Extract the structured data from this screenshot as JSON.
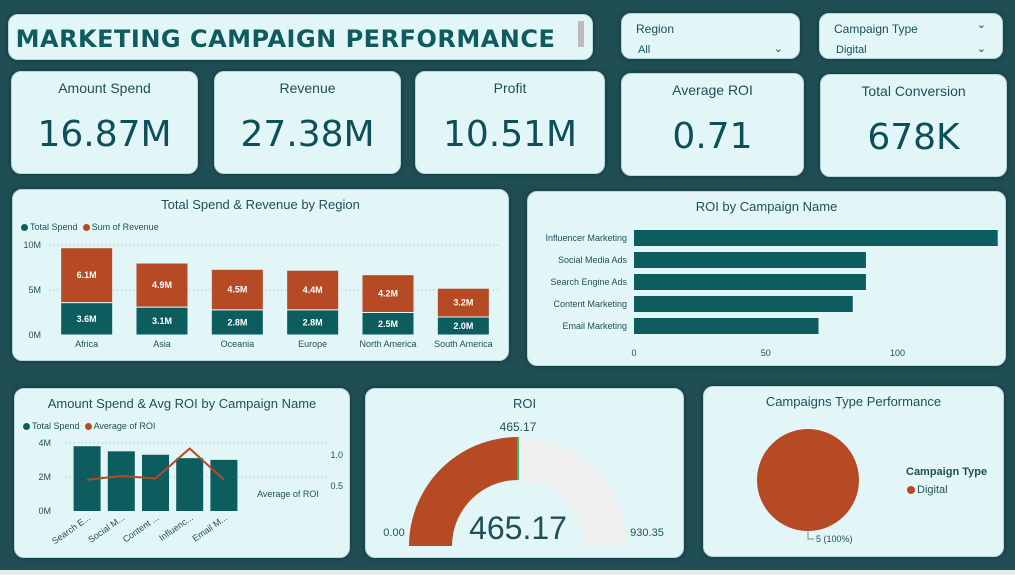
{
  "title": "MARKETING CAMPAIGN PERFORMANCE",
  "slicers": [
    {
      "label": "Region",
      "value": "All"
    },
    {
      "label": "Campaign Type",
      "value": "Digital"
    }
  ],
  "kpis": [
    {
      "label": "Amount Spend",
      "value": "16.87M"
    },
    {
      "label": "Revenue",
      "value": "27.38M"
    },
    {
      "label": "Profit",
      "value": "10.51M"
    },
    {
      "label": "Average ROI",
      "value": "0.71"
    },
    {
      "label": "Total Conversion",
      "value": "678K"
    }
  ],
  "colors": {
    "teal": "#0d5c5e",
    "orange": "#b54a25",
    "card": "#e3f6f7",
    "background": "#1f4f55"
  },
  "chart_data": [
    {
      "type": "bar",
      "stacked": true,
      "title": "Total Spend & Revenue by Region",
      "categories": [
        "Africa",
        "Asia",
        "Oceania",
        "Europe",
        "North America",
        "South America"
      ],
      "series": [
        {
          "name": "Total Spend",
          "values": [
            3.6,
            3.1,
            2.8,
            2.8,
            2.5,
            2.0
          ],
          "labels": [
            "3.6M",
            "3.1M",
            "2.8M",
            "2.8M",
            "2.5M",
            "2.0M"
          ]
        },
        {
          "name": "Sum of Revenue",
          "values": [
            6.1,
            4.9,
            4.5,
            4.4,
            4.2,
            3.2
          ],
          "labels": [
            "6.1M",
            "4.9M",
            "4.5M",
            "4.4M",
            "4.2M",
            "3.2M"
          ]
        }
      ],
      "yticks": [
        "0M",
        "5M",
        "10M"
      ],
      "ylim": [
        0,
        10
      ],
      "legend": "top-left",
      "grid": true
    },
    {
      "type": "bar",
      "orientation": "horizontal",
      "title": "ROI by Campaign Name",
      "categories": [
        "Influencer Marketing",
        "Social Media Ads",
        "Search Engine Ads",
        "Content Marketing",
        "Email Marketing"
      ],
      "values": [
        138,
        88,
        88,
        83,
        70
      ],
      "xticks": [
        "0",
        "50",
        "100"
      ],
      "xlim": [
        0,
        140
      ]
    },
    {
      "type": "bar",
      "combo": "bar+line",
      "title": "Amount Spend & Avg ROI by Campaign Name",
      "categories": [
        "Search E...",
        "Social M...",
        "Content ...",
        "Influenc...",
        "Email M..."
      ],
      "series": [
        {
          "name": "Total Spend",
          "values": [
            3.8,
            3.5,
            3.3,
            3.1,
            3.0
          ]
        },
        {
          "name": "Average of ROI",
          "values": [
            0.6,
            0.66,
            0.62,
            1.1,
            0.6
          ]
        }
      ],
      "yticks": [
        "0M",
        "2M",
        "4M"
      ],
      "ylim": [
        0,
        4.4
      ],
      "y2ticks": [
        "0.5",
        "1.0"
      ],
      "y2lim": [
        0.1,
        1.3
      ],
      "y2label": "Average of ROI",
      "legend": "top-left",
      "grid": true
    },
    {
      "type": "gauge",
      "title": "ROI",
      "value": 465.17,
      "value_label": "465.17",
      "min_label": "0.00",
      "max_label": "930.35",
      "target_label": "465.17",
      "min": 0,
      "max": 930.35
    },
    {
      "type": "pie",
      "title": "Campaigns Type Performance",
      "slices": [
        {
          "name": "Digital",
          "value": 5,
          "label": "5 (100%)"
        }
      ],
      "legend_title": "Campaign Type"
    }
  ]
}
